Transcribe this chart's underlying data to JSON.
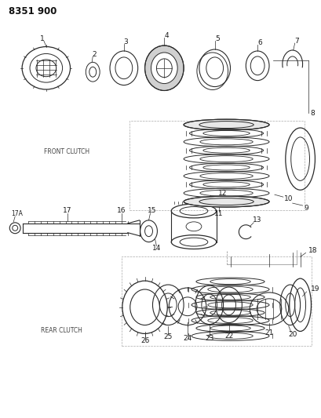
{
  "title": "8351 900",
  "background_color": "#ffffff",
  "line_color": "#2a2a2a",
  "front_clutch_label": "FRONT CLUTCH",
  "rear_clutch_label": "REAR CLUTCH",
  "fig_w": 4.1,
  "fig_h": 5.33,
  "dpi": 100
}
